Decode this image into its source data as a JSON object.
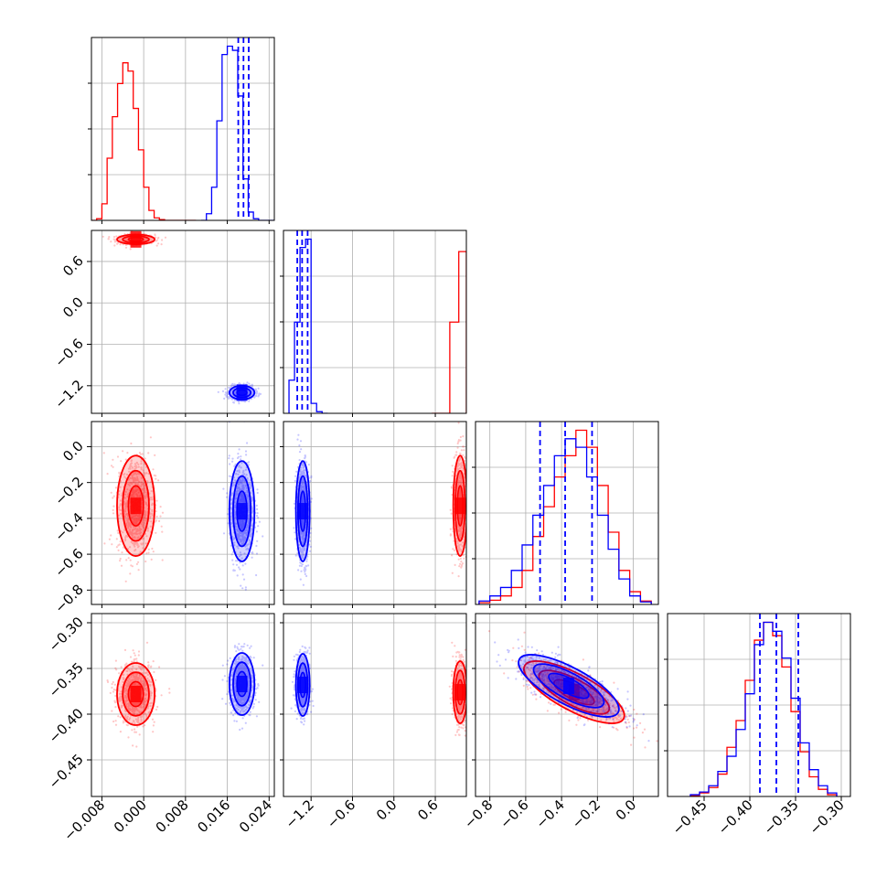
{
  "chart_data": {
    "type": "corner",
    "grid": true,
    "colors": {
      "red": "#ff0000",
      "blue": "#0000ff"
    },
    "parameters": [
      {
        "id": "p0",
        "xlim": [
          -0.01,
          0.025
        ],
        "xticks": [
          -0.008,
          0.0,
          0.008,
          0.016,
          0.024
        ],
        "tick_labels": [
          "−0.008",
          "0.000",
          "0.008",
          "0.016",
          "0.024"
        ]
      },
      {
        "id": "p1",
        "xlim": [
          -1.6,
          1.05
        ],
        "xticks": [
          -1.2,
          -0.6,
          0.0,
          0.6
        ],
        "tick_labels": [
          "−1.2",
          "−0.6",
          "0.0",
          "0.6"
        ]
      },
      {
        "id": "p2",
        "xlim": [
          -0.88,
          0.14
        ],
        "xticks": [
          -0.8,
          -0.6,
          -0.4,
          -0.2,
          0.0
        ],
        "tick_labels": [
          "−0.8",
          "−0.6",
          "−0.4",
          "−0.2",
          "0.0"
        ]
      },
      {
        "id": "p3",
        "xlim": [
          -0.49,
          -0.29
        ],
        "xticks": [
          -0.45,
          -0.4,
          -0.35,
          -0.3
        ],
        "tick_labels": [
          "−0.45",
          "−0.40",
          "−0.35",
          "−0.30"
        ]
      }
    ],
    "histograms": [
      {
        "param": 0,
        "series": [
          {
            "color": "red",
            "bins": [
              -0.01,
              -0.009,
              -0.008,
              -0.007,
              -0.006,
              -0.005,
              -0.004,
              -0.003,
              -0.002,
              -0.001,
              0.0,
              0.001,
              0.002,
              0.003,
              0.004,
              0.005,
              0.006,
              0.007,
              0.008,
              0.009,
              0.01
            ],
            "counts": [
              0,
              2,
              20,
              75,
              125,
              165,
              190,
              180,
              135,
              85,
              40,
              12,
              3,
              1,
              0,
              0,
              0,
              0,
              0,
              0
            ]
          },
          {
            "color": "blue",
            "bins": [
              0.011,
              0.012,
              0.013,
              0.014,
              0.015,
              0.016,
              0.017,
              0.018,
              0.019,
              0.02,
              0.021,
              0.022,
              0.023,
              0.024,
              0.025
            ],
            "counts": [
              0,
              8,
              40,
              120,
              200,
              210,
              205,
              150,
              50,
              10,
              2,
              0,
              0,
              0
            ]
          }
        ],
        "quantiles": [
          0.0181,
          0.0191,
          0.0201
        ]
      },
      {
        "param": 1,
        "series": [
          {
            "color": "red",
            "bins": [
              0.55,
              0.68,
              0.81,
              0.94,
              1.05
            ],
            "counts": [
              0,
              0,
              110,
              195
            ]
          },
          {
            "color": "blue",
            "bins": [
              -1.52,
              -1.44,
              -1.36,
              -1.28,
              -1.2,
              -1.12,
              -1.04,
              -0.96
            ],
            "counts": [
              40,
              110,
              200,
              210,
              12,
              2,
              0
            ]
          }
        ],
        "quantiles": [
          -1.4,
          -1.33,
          -1.25
        ]
      },
      {
        "param": 2,
        "series": [
          {
            "color": "red",
            "bins": [
              -0.86,
              -0.8,
              -0.74,
              -0.68,
              -0.62,
              -0.56,
              -0.5,
              -0.44,
              -0.38,
              -0.32,
              -0.26,
              -0.2,
              -0.14,
              -0.08,
              -0.02,
              0.04,
              0.1
            ],
            "counts": [
              2,
              5,
              10,
              20,
              40,
              80,
              115,
              150,
              175,
              205,
              185,
              140,
              85,
              40,
              15,
              4
            ]
          },
          {
            "color": "blue",
            "bins": [
              -0.86,
              -0.8,
              -0.74,
              -0.68,
              -0.62,
              -0.56,
              -0.5,
              -0.44,
              -0.38,
              -0.32,
              -0.26,
              -0.2,
              -0.14,
              -0.08,
              -0.02,
              0.04,
              0.1
            ],
            "counts": [
              4,
              10,
              20,
              40,
              70,
              105,
              140,
              175,
              195,
              185,
              150,
              105,
              65,
              30,
              10,
              3
            ]
          }
        ],
        "quantiles": [
          -0.52,
          -0.38,
          -0.23
        ]
      },
      {
        "param": 3,
        "series": [
          {
            "color": "red",
            "bins": [
              -0.465,
              -0.455,
              -0.445,
              -0.435,
              -0.425,
              -0.415,
              -0.405,
              -0.395,
              -0.385,
              -0.375,
              -0.365,
              -0.355,
              -0.345,
              -0.335,
              -0.325,
              -0.315,
              -0.305
            ],
            "counts": [
              1,
              4,
              10,
              25,
              55,
              85,
              130,
              175,
              195,
              180,
              145,
              95,
              50,
              22,
              8,
              2
            ]
          },
          {
            "color": "blue",
            "bins": [
              -0.465,
              -0.455,
              -0.445,
              -0.435,
              -0.425,
              -0.415,
              -0.405,
              -0.395,
              -0.385,
              -0.375,
              -0.365,
              -0.355,
              -0.345,
              -0.335,
              -0.325,
              -0.315,
              -0.305
            ],
            "counts": [
              2,
              5,
              12,
              28,
              45,
              75,
              115,
              170,
              195,
              185,
              155,
              110,
              60,
              30,
              12,
              4
            ]
          }
        ],
        "quantiles": [
          -0.389,
          -0.371,
          -0.347
        ]
      }
    ],
    "scatter_2d": [
      {
        "x": 0,
        "y": 1,
        "red": {
          "mean": [
            -0.0015,
            0.92
          ],
          "sd": [
            0.0018,
            0.035
          ],
          "corr": 0.0
        },
        "blue": {
          "mean": [
            0.0188,
            -1.3
          ],
          "sd": [
            0.0012,
            0.05
          ],
          "corr": 0.0
        }
      },
      {
        "x": 0,
        "y": 2,
        "red": {
          "mean": [
            -0.0015,
            -0.33
          ],
          "sd": [
            0.0018,
            0.14
          ],
          "corr": 0.0
        },
        "blue": {
          "mean": [
            0.0188,
            -0.36
          ],
          "sd": [
            0.0012,
            0.14
          ],
          "corr": 0.0
        }
      },
      {
        "x": 1,
        "y": 2,
        "red": {
          "mean": [
            0.96,
            -0.33
          ],
          "sd": [
            0.05,
            0.14
          ],
          "corr": 0.0
        },
        "blue": {
          "mean": [
            -1.32,
            -0.36
          ],
          "sd": [
            0.05,
            0.14
          ],
          "corr": 0.0
        }
      },
      {
        "x": 0,
        "y": 3,
        "red": {
          "mean": [
            -0.0015,
            -0.378
          ],
          "sd": [
            0.0018,
            0.017
          ],
          "corr": 0.0
        },
        "blue": {
          "mean": [
            0.0188,
            -0.367
          ],
          "sd": [
            0.0012,
            0.017
          ],
          "corr": 0.0
        }
      },
      {
        "x": 1,
        "y": 3,
        "red": {
          "mean": [
            0.96,
            -0.376
          ],
          "sd": [
            0.05,
            0.017
          ],
          "corr": 0.0
        },
        "blue": {
          "mean": [
            -1.32,
            -0.368
          ],
          "sd": [
            0.05,
            0.017
          ],
          "corr": 0.0
        }
      },
      {
        "x": 2,
        "y": 3,
        "red": {
          "mean": [
            -0.33,
            -0.376
          ],
          "sd": [
            0.14,
            0.017
          ],
          "corr": -0.75
        },
        "blue": {
          "mean": [
            -0.36,
            -0.369
          ],
          "sd": [
            0.14,
            0.017
          ],
          "corr": -0.75
        }
      }
    ]
  }
}
